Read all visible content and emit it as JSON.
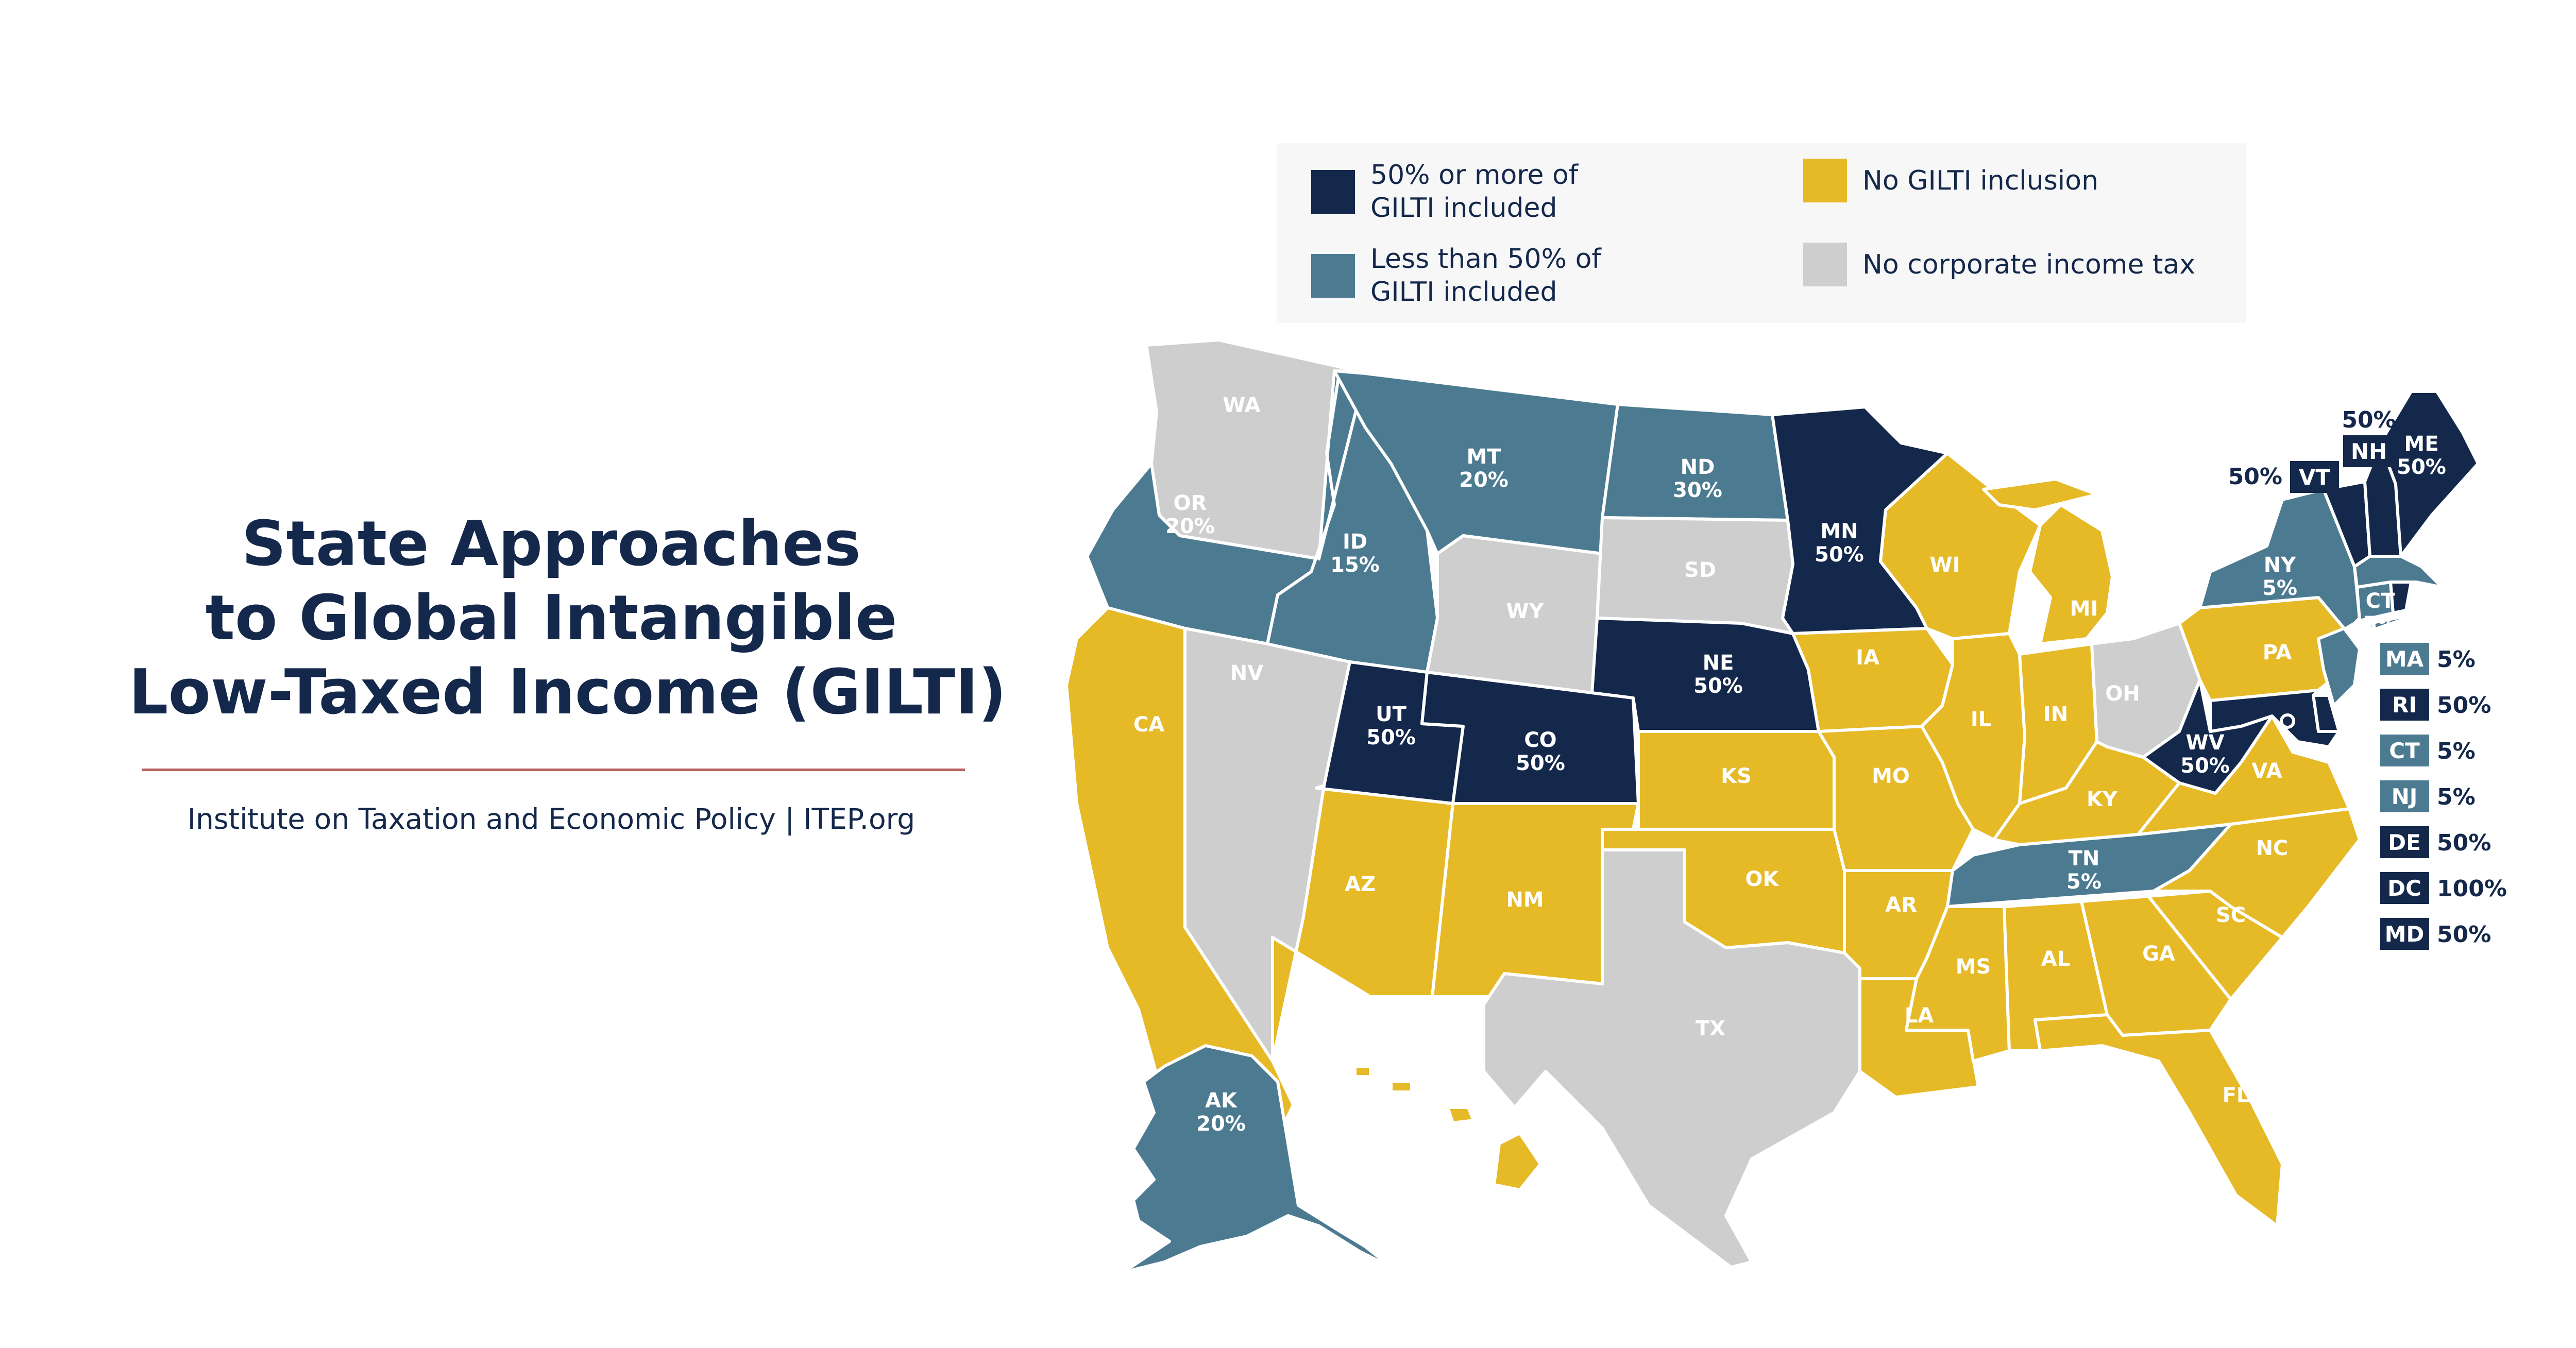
{
  "title_lines": [
    "State Approaches",
    "to Global Intangible",
    "Low-Taxed Income (GILTI)"
  ],
  "source": "Institute on Taxation and Economic Policy | ITEP.org",
  "colors": {
    "dark": "#14284b",
    "medium": "#4c7b91",
    "yellow": "#e6b926",
    "gray": "#cecece",
    "accent_rule": "#b9625f",
    "legend_bg": "#f7f7f7"
  },
  "legend": [
    {
      "label": "50% or more of\nGILTI included",
      "category": "dark"
    },
    {
      "label": "Less than 50% of\nGILTI included",
      "category": "medium"
    },
    {
      "label": "No GILTI inclusion",
      "category": "yellow"
    },
    {
      "label": "No corporate income tax",
      "category": "gray"
    }
  ],
  "states": {
    "WA": {
      "label": "WA",
      "value": "",
      "category": "gray"
    },
    "OR": {
      "label": "OR",
      "value": "20%",
      "category": "medium"
    },
    "CA": {
      "label": "CA",
      "value": "",
      "category": "yellow"
    },
    "NV": {
      "label": "NV",
      "value": "",
      "category": "gray"
    },
    "ID": {
      "label": "ID",
      "value": "15%",
      "category": "medium"
    },
    "MT": {
      "label": "MT",
      "value": "20%",
      "category": "medium"
    },
    "WY": {
      "label": "WY",
      "value": "",
      "category": "gray"
    },
    "UT": {
      "label": "UT",
      "value": "50%",
      "category": "dark"
    },
    "CO": {
      "label": "CO",
      "value": "50%",
      "category": "dark"
    },
    "AZ": {
      "label": "AZ",
      "value": "",
      "category": "yellow"
    },
    "NM": {
      "label": "NM",
      "value": "",
      "category": "yellow"
    },
    "ND": {
      "label": "ND",
      "value": "30%",
      "category": "medium"
    },
    "SD": {
      "label": "SD",
      "value": "",
      "category": "gray"
    },
    "NE": {
      "label": "NE",
      "value": "50%",
      "category": "dark"
    },
    "KS": {
      "label": "KS",
      "value": "",
      "category": "yellow"
    },
    "OK": {
      "label": "OK",
      "value": "",
      "category": "yellow"
    },
    "TX": {
      "label": "TX",
      "value": "",
      "category": "gray"
    },
    "MN": {
      "label": "MN",
      "value": "50%",
      "category": "dark"
    },
    "IA": {
      "label": "IA",
      "value": "",
      "category": "yellow"
    },
    "MO": {
      "label": "MO",
      "value": "",
      "category": "yellow"
    },
    "AR": {
      "label": "AR",
      "value": "",
      "category": "yellow"
    },
    "LA": {
      "label": "LA",
      "value": "",
      "category": "yellow"
    },
    "WI": {
      "label": "WI",
      "value": "",
      "category": "yellow"
    },
    "IL": {
      "label": "IL",
      "value": "",
      "category": "yellow"
    },
    "MI": {
      "label": "MI",
      "value": "",
      "category": "yellow"
    },
    "IN": {
      "label": "IN",
      "value": "",
      "category": "yellow"
    },
    "OH": {
      "label": "OH",
      "value": "",
      "category": "gray"
    },
    "KY": {
      "label": "KY",
      "value": "",
      "category": "yellow"
    },
    "TN": {
      "label": "TN",
      "value": "5%",
      "category": "medium"
    },
    "MS": {
      "label": "MS",
      "value": "",
      "category": "yellow"
    },
    "AL": {
      "label": "AL",
      "value": "",
      "category": "yellow"
    },
    "GA": {
      "label": "GA",
      "value": "",
      "category": "yellow"
    },
    "FL": {
      "label": "FL",
      "value": "",
      "category": "yellow"
    },
    "SC": {
      "label": "SC",
      "value": "",
      "category": "yellow"
    },
    "NC": {
      "label": "NC",
      "value": "",
      "category": "yellow"
    },
    "VA": {
      "label": "VA",
      "value": "",
      "category": "yellow"
    },
    "WV": {
      "label": "WV",
      "value": "50%",
      "category": "dark"
    },
    "PA": {
      "label": "PA",
      "value": "",
      "category": "yellow"
    },
    "NY": {
      "label": "NY",
      "value": "5%",
      "category": "medium"
    },
    "VT": {
      "label": "VT",
      "value": "50%",
      "category": "dark"
    },
    "NH": {
      "label": "NH",
      "value": "50%",
      "category": "dark"
    },
    "ME": {
      "label": "ME",
      "value": "50%",
      "category": "dark"
    },
    "MA": {
      "label": "MA",
      "value": "5%",
      "category": "medium"
    },
    "RI": {
      "label": "RI",
      "value": "50%",
      "category": "dark"
    },
    "CT": {
      "label": "CT",
      "value": "5%",
      "category": "medium"
    },
    "NJ": {
      "label": "NJ",
      "value": "5%",
      "category": "medium"
    },
    "DE": {
      "label": "DE",
      "value": "50%",
      "category": "dark"
    },
    "MD": {
      "label": "MD",
      "value": "50%",
      "category": "dark"
    },
    "DC": {
      "label": "DC",
      "value": "100%",
      "category": "dark"
    },
    "AK": {
      "label": "AK",
      "value": "20%",
      "category": "medium"
    },
    "HI": {
      "label": "HI",
      "value": "",
      "category": "yellow"
    }
  },
  "sidebar_states": [
    "MA",
    "RI",
    "CT",
    "NJ",
    "DE",
    "DC",
    "MD"
  ]
}
